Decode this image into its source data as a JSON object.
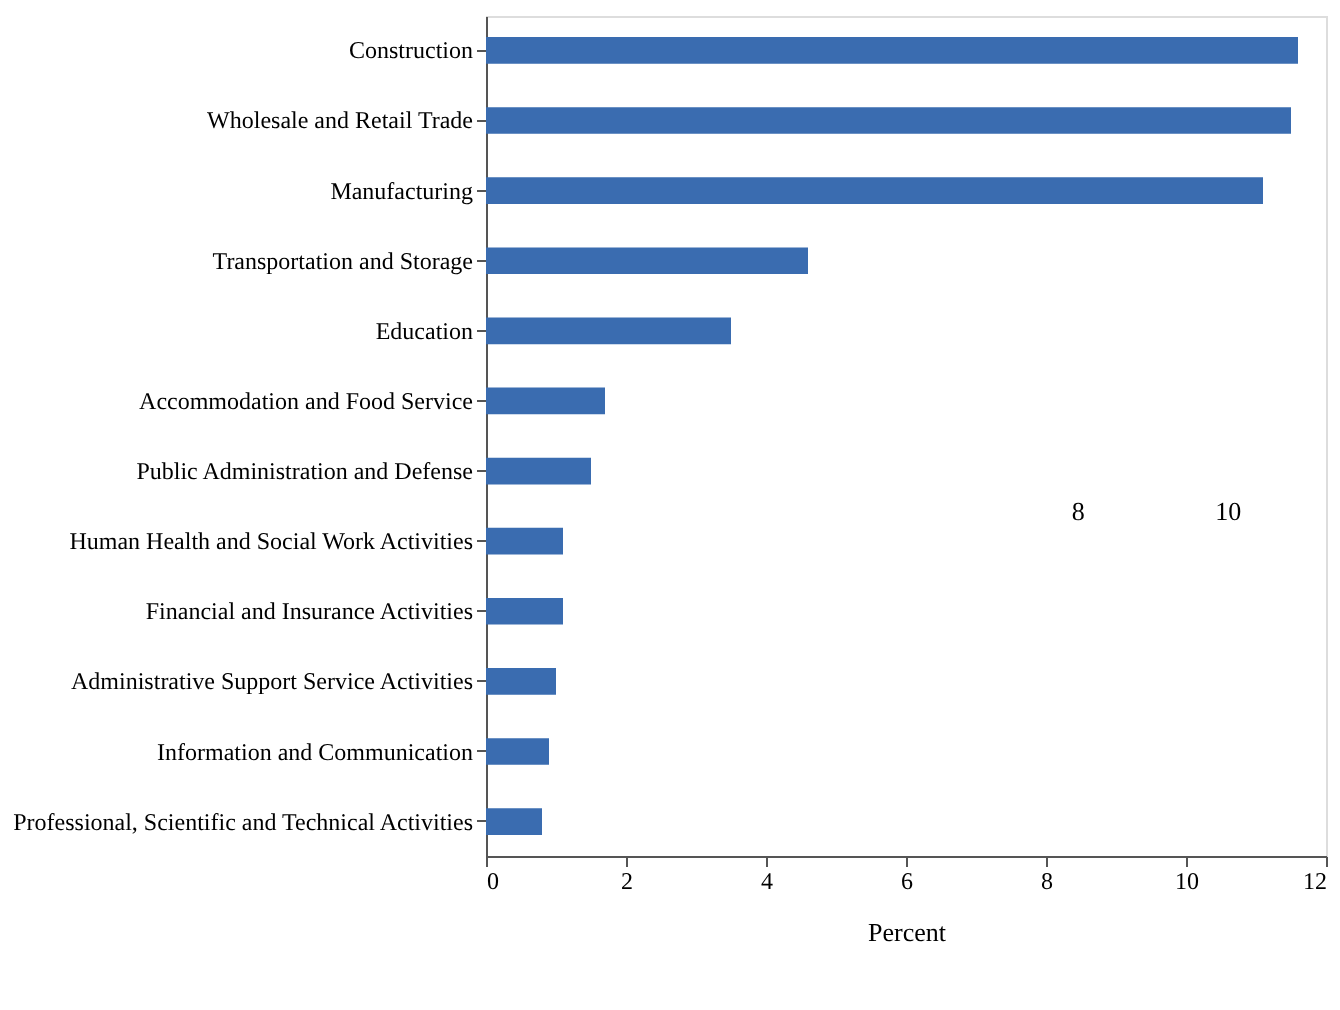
{
  "chart_data": {
    "type": "bar",
    "orientation": "horizontal",
    "xlabel": "Percent",
    "categories": [
      "Construction",
      "Wholesale and Retail Trade",
      "Manufacturing",
      "Transportation and Storage",
      "Education",
      "Accommodation and Food Service",
      "Public Administration and Defense",
      "Human Health and Social Work Activities",
      "Financial and Insurance Activities",
      "Administrative Support Service Activities",
      "Information and Communication",
      "Professional, Scientific and Technical Activities"
    ],
    "values": [
      11.6,
      11.5,
      11.1,
      4.6,
      3.5,
      1.7,
      1.5,
      1.1,
      1.1,
      1.0,
      0.9,
      0.8
    ],
    "color": "#3a6cb0",
    "xlim": [
      0,
      12
    ],
    "xticks": [
      0,
      2,
      4,
      6,
      8,
      10,
      12
    ],
    "grid": false,
    "annotations": [
      "8",
      "10"
    ]
  }
}
